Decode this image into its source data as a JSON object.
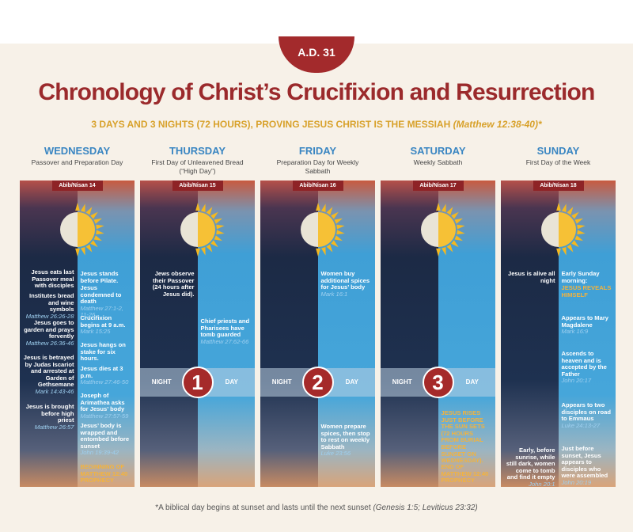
{
  "header": {
    "badge": "A.D. 31",
    "title": "Chronology of Christ’s Crucifixion and Resurrection",
    "subtitle": "3 DAYS AND 3 NIGHTS (72 HOURS), PROVING JESUS CHRIST IS THE MESSIAH",
    "subtitle_ref": "(Matthew 12:38-40)*"
  },
  "days": [
    {
      "name": "WEDNESDAY",
      "subtitle": "Passover and Preparation Day",
      "date": "Abib/Nisan 14",
      "left_events": [
        {
          "text": "Jesus eats last Passover meal with disciples"
        },
        {
          "text": "Institutes bread and wine symbols",
          "ref": "Matthew 26:26-28"
        },
        {
          "text": "Jesus goes to garden and prays fervently",
          "ref": "Matthew 26:36-46"
        },
        {
          "text": "Jesus is betrayed by Judas Iscariot and arrested at Garden of Gethsemane",
          "ref": "Mark 14:43-46"
        },
        {
          "text": "Jesus is brought before high priest",
          "ref": "Matthew 26:57"
        }
      ],
      "right_events": [
        {
          "text": "Jesus stands before Pilate."
        },
        {
          "text": "Jesus condemned to death",
          "ref": "Matthew 27:1-2, 11-26"
        },
        {
          "text": "Crucifixion begins at 9 a.m.",
          "ref": "Mark 15:25"
        },
        {
          "text": "Jesus hangs on stake for six hours."
        },
        {
          "text": "Jesus dies at 3 p.m.",
          "ref": "Matthew 27:46-50"
        },
        {
          "text": "Joseph of Arimathea asks for Jesus’ body",
          "ref": "Matthew 27:57-59"
        },
        {
          "text": "Jesus’ body is wrapped and entombed before sunset",
          "ref": "John 19:39-42"
        },
        {
          "text": "BEGINNING OF MATTHEW 12:40 PROPHECY",
          "emphasis": true
        }
      ]
    },
    {
      "name": "THURSDAY",
      "subtitle": "First Day of Unleavened Bread (“High Day”)",
      "date": "Abib/Nisan 15",
      "left_events": [
        {
          "text": "Jews observe their Passover (24 hours after Jesus did)."
        }
      ],
      "right_events": [
        {
          "text": "Chief priests and Pharisees have tomb guarded",
          "ref": "Matthew 27:62-66"
        }
      ],
      "marker": {
        "left": "NIGHT",
        "number": 1,
        "right": "DAY"
      }
    },
    {
      "name": "FRIDAY",
      "subtitle": "Preparation Day for Weekly Sabbath",
      "date": "Abib/Nisan 16",
      "left_events": [],
      "right_events": [
        {
          "text": "Women buy additional spices for Jesus’ body",
          "ref": "Mark 16:1"
        },
        {
          "text": "Women prepare spices, then stop to rest on weekly Sabbath",
          "ref": "Luke 23:56"
        }
      ],
      "marker": {
        "left": "NIGHT",
        "number": 2,
        "right": "DAY"
      }
    },
    {
      "name": "SATURDAY",
      "subtitle": "Weekly Sabbath",
      "date": "Abib/Nisan 17",
      "left_events": [],
      "right_events": [
        {
          "text": "JESUS RISES JUST BEFORE THE SUN SETS (72 HOURS FROM BURIAL BEFORE SUNSET ON WEDNESDAY).",
          "emphasis": true
        },
        {
          "text": "END OF MATTHEW 12:40 PROPHECY",
          "emphasis": true
        }
      ],
      "marker": {
        "left": "NIGHT",
        "number": 3,
        "right": "DAY"
      }
    },
    {
      "name": "SUNDAY",
      "subtitle": "First Day of the Week",
      "date": "Abib/Nisan 18",
      "left_events": [
        {
          "text": "Jesus is alive all night"
        },
        {
          "text": "Early, before sunrise, while still dark, women come to tomb and find it empty",
          "ref": "John 20:1"
        }
      ],
      "right_events": [
        {
          "text": "Early Sunday morning:"
        },
        {
          "text": "JESUS REVEALS HIMSELF",
          "emphasis": true
        },
        {
          "text": "Appears to Mary Magdalene",
          "ref": "Mark 16:9"
        },
        {
          "text": "Ascends to heaven and is accepted by the Father",
          "ref": "John 20:17"
        },
        {
          "text": "Appears to two disciples on road to Emmaus",
          "ref": "Luke 24:13-27"
        },
        {
          "text": "Just before sunset, Jesus appears to disciples who were assembled",
          "ref": "John 20:19"
        }
      ]
    }
  ],
  "footer": {
    "note": "*A biblical day begins at sunset and lasts until the next sunset",
    "ref": "(Genesis 1:5; Leviticus 23:32)"
  }
}
